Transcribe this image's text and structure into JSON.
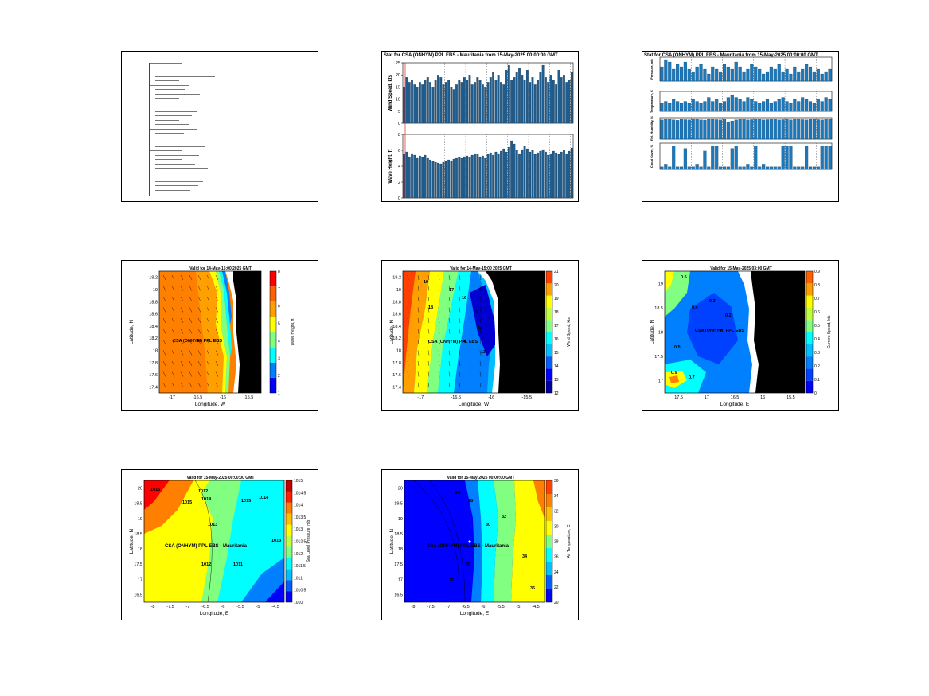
{
  "chart_data": [
    {
      "type": "table",
      "description_lines": 30
    },
    {
      "type": "bar",
      "title": "Stat for CSA (ONHYM) PPL EBS - Mauritania from 15-May-2025 00:00:00 GMT",
      "panels": [
        {
          "ylabel": "Wind Speed, kts",
          "ylim": [
            0,
            25
          ],
          "yticks": [
            0,
            5,
            10,
            15,
            20,
            25
          ],
          "values": [
            15,
            19,
            17,
            18,
            16,
            15,
            17,
            16,
            18,
            19,
            17,
            15,
            18,
            20,
            19,
            16,
            17,
            18,
            15,
            14,
            16,
            18,
            17,
            19,
            18,
            20,
            16,
            17,
            19,
            18,
            16,
            15,
            17,
            19,
            21,
            18,
            20,
            17,
            16,
            22,
            24,
            18,
            19,
            21,
            23,
            20,
            18,
            22,
            17,
            19,
            16,
            18,
            21,
            24,
            19,
            17,
            20,
            18,
            16,
            22,
            19,
            20,
            17,
            18,
            21
          ]
        },
        {
          "ylabel": "Wave Height, ft",
          "ylim": [
            0,
            8
          ],
          "yticks": [
            0,
            2,
            4,
            6,
            8
          ],
          "values": [
            5.5,
            5.8,
            5.2,
            5.6,
            5.4,
            5.0,
            5.3,
            5.1,
            5.4,
            5.0,
            4.8,
            4.6,
            4.5,
            4.4,
            4.3,
            4.5,
            4.6,
            4.8,
            4.7,
            4.9,
            5.0,
            5.1,
            5.0,
            5.2,
            5.3,
            5.1,
            5.4,
            5.6,
            5.5,
            5.2,
            5.3,
            5.0,
            5.5,
            5.7,
            5.4,
            5.8,
            5.6,
            5.9,
            6.2,
            5.8,
            6.4,
            7.2,
            6.8,
            6.0,
            5.6,
            6.1,
            6.5,
            6.2,
            5.8,
            6.0,
            5.5,
            5.7,
            5.9,
            6.1,
            5.8,
            5.4,
            5.6,
            5.9,
            5.7,
            5.5,
            5.8,
            6.0,
            5.6,
            5.9,
            6.3
          ]
        }
      ]
    },
    {
      "type": "bar",
      "title": "Stat for CSA (ONHYM) PPL EBS - Mauritania from 15-May-2025 00:00:00 GMT",
      "panels": [
        {
          "ylabel": "Pressure, mb",
          "values": [
            0.6,
            0.9,
            0.8,
            0.5,
            0.7,
            0.6,
            0.8,
            0.5,
            0.4,
            0.6,
            0.7,
            0.5,
            0.3,
            0.6,
            0.5,
            0.4,
            0.7,
            0.6,
            0.5,
            0.8,
            0.6,
            0.4,
            0.5,
            0.7,
            0.6,
            0.5,
            0.3,
            0.4,
            0.6,
            0.5,
            0.7,
            0.4,
            0.5,
            0.3,
            0.6,
            0.4,
            0.5,
            0.7,
            0.6,
            0.4,
            0.5,
            0.3,
            0.4,
            0.5
          ]
        },
        {
          "ylabel": "Temperature, C",
          "values": [
            0.4,
            0.5,
            0.4,
            0.6,
            0.5,
            0.4,
            0.5,
            0.4,
            0.6,
            0.5,
            0.4,
            0.5,
            0.7,
            0.5,
            0.6,
            0.4,
            0.5,
            0.7,
            0.8,
            0.7,
            0.6,
            0.5,
            0.7,
            0.6,
            0.5,
            0.4,
            0.5,
            0.6,
            0.4,
            0.5,
            0.6,
            0.7,
            0.5,
            0.4,
            0.6,
            0.5,
            0.7,
            0.6,
            0.5,
            0.4,
            0.6,
            0.5,
            0.7,
            0.6
          ]
        },
        {
          "ylabel": "Rel. Humidity, %",
          "values": [
            0.9,
            0.92,
            0.94,
            0.9,
            0.88,
            0.93,
            0.91,
            0.9,
            0.92,
            0.94,
            0.9,
            0.89,
            0.92,
            0.93,
            0.91,
            0.9,
            0.92,
            0.8,
            0.85,
            0.9,
            0.93,
            0.92,
            0.9,
            0.91,
            0.93,
            0.92,
            0.9,
            0.91,
            0.92,
            0.93,
            0.9,
            0.91,
            0.92,
            0.9,
            0.93,
            0.92,
            0.91,
            0.9,
            0.92,
            0.93,
            0.91,
            0.9,
            0.92,
            0.93
          ]
        },
        {
          "ylabel": "Cloud Cover, %",
          "values": [
            0.1,
            0.2,
            0.1,
            0.9,
            0.1,
            0.1,
            0.8,
            0.1,
            0.1,
            0.2,
            0.1,
            0.7,
            0.1,
            0.9,
            0.9,
            0.1,
            0.1,
            0.1,
            0.8,
            0.9,
            0.1,
            0.1,
            0.2,
            0.1,
            0.9,
            0.1,
            0.2,
            0.1,
            0.1,
            0.1,
            0.1,
            0.9,
            0.9,
            0.9,
            0.1,
            0.1,
            0.1,
            0.9,
            0.1,
            0.1,
            0.1,
            0.9,
            0.9,
            0.9
          ]
        }
      ]
    },
    {
      "type": "heatmap",
      "title": "Valid for 14-May-15:00 2025 GMT",
      "xlabel": "Longitude, W",
      "ylabel": "Latitude, N",
      "xticks": [
        "-17",
        "-16.5",
        "-16",
        "-15.5"
      ],
      "yticks": [
        "17.4",
        "17.6",
        "17.8",
        "18",
        "18.2",
        "18.4",
        "18.6",
        "18.8",
        "19",
        "19.2"
      ],
      "colorbar_label": "Wave Height, ft",
      "colorbar_ticks": [
        "1",
        "2",
        "3",
        "4",
        "5",
        "6",
        "7",
        "8"
      ],
      "annotation": "CSA (ONHYM) PPL EBS"
    },
    {
      "type": "heatmap",
      "title": "Valid for 14-May-15:00 2025 GMT",
      "xlabel": "Longitude, W",
      "ylabel": "Latitude, N",
      "xticks": [
        "-17",
        "-16.5",
        "-16",
        "-15.5"
      ],
      "yticks": [
        "17.4",
        "17.6",
        "17.8",
        "18",
        "18.2",
        "18.4",
        "18.6",
        "18.8",
        "19",
        "19.2"
      ],
      "colorbar_label": "Wind Speed, kts",
      "colorbar_ticks": [
        "12",
        "13",
        "14",
        "15",
        "16",
        "17",
        "18",
        "19",
        "20",
        "21"
      ],
      "annotation": "CSA (ONHYM) PPL EBS",
      "contour_labels": [
        "19",
        "18",
        "17",
        "16",
        "15",
        "14",
        "13"
      ]
    },
    {
      "type": "heatmap",
      "title": "Valid for 15-May-2025 03:00 GMT",
      "xlabel": "Longitude, E",
      "ylabel": "Latitude, N",
      "xticks": [
        "17.5",
        "17",
        "16.5",
        "16",
        "15.5"
      ],
      "yticks": [
        "17",
        "17.5",
        "18",
        "18.5",
        "19"
      ],
      "colorbar_label": "Current Speed, kts",
      "colorbar_ticks": [
        "0",
        "0.1",
        "0.2",
        "0.3",
        "0.4",
        "0.5",
        "0.6",
        "0.7",
        "0.8",
        "0.9"
      ],
      "annotation": "CSA (ONHYM) PPL EBS",
      "contour_labels": [
        "0.6",
        "0.4",
        "0.3",
        "0.2",
        "0.5",
        "0.9",
        "0.7"
      ]
    },
    {
      "type": "heatmap",
      "title": "Valid for 15-May-2025 00:00:00 GMT",
      "xlabel": "Longitude, E",
      "ylabel": "Latitude, N",
      "xticks": [
        "-8",
        "-7.5",
        "-7",
        "-6.5",
        "-6",
        "-5.5",
        "-5",
        "-4.5"
      ],
      "yticks": [
        "16.5",
        "17",
        "17.5",
        "18",
        "18.5",
        "19",
        "19.5",
        "20"
      ],
      "colorbar_label": "Sea Level Pressure, mb",
      "colorbar_ticks": [
        "1010",
        "1010.5",
        "1011",
        "1011.5",
        "1012",
        "1012.5",
        "1013",
        "1013.5",
        "1014",
        "1014.5",
        "1015"
      ],
      "annotation": "CSA (ONHYM) PPL EBS - Mauritania",
      "contour_labels": [
        "1016",
        "1015",
        "1014",
        "1013",
        "1012",
        "1011",
        "1015",
        "1014",
        "1013",
        "1012"
      ]
    },
    {
      "type": "heatmap",
      "title": "Valid for 15-May-2025 00:00:00 GMT",
      "xlabel": "Longitude, E",
      "ylabel": "Latitude, N",
      "xticks": [
        "-8",
        "-7.5",
        "-7",
        "-6.5",
        "-6",
        "-5.5",
        "-5",
        "-4.5"
      ],
      "yticks": [
        "16.5",
        "17",
        "17.5",
        "18",
        "18.5",
        "19",
        "19.5",
        "20"
      ],
      "colorbar_label": "Air Temperature, C",
      "colorbar_ticks": [
        "20",
        "22",
        "24",
        "26",
        "28",
        "30",
        "32",
        "34",
        "36"
      ],
      "annotation": "CSA (ONHYM) PPL EBS - Mauritania",
      "contour_labels": [
        "28",
        "26",
        "30",
        "32",
        "34",
        "36",
        "24",
        "22"
      ]
    }
  ]
}
